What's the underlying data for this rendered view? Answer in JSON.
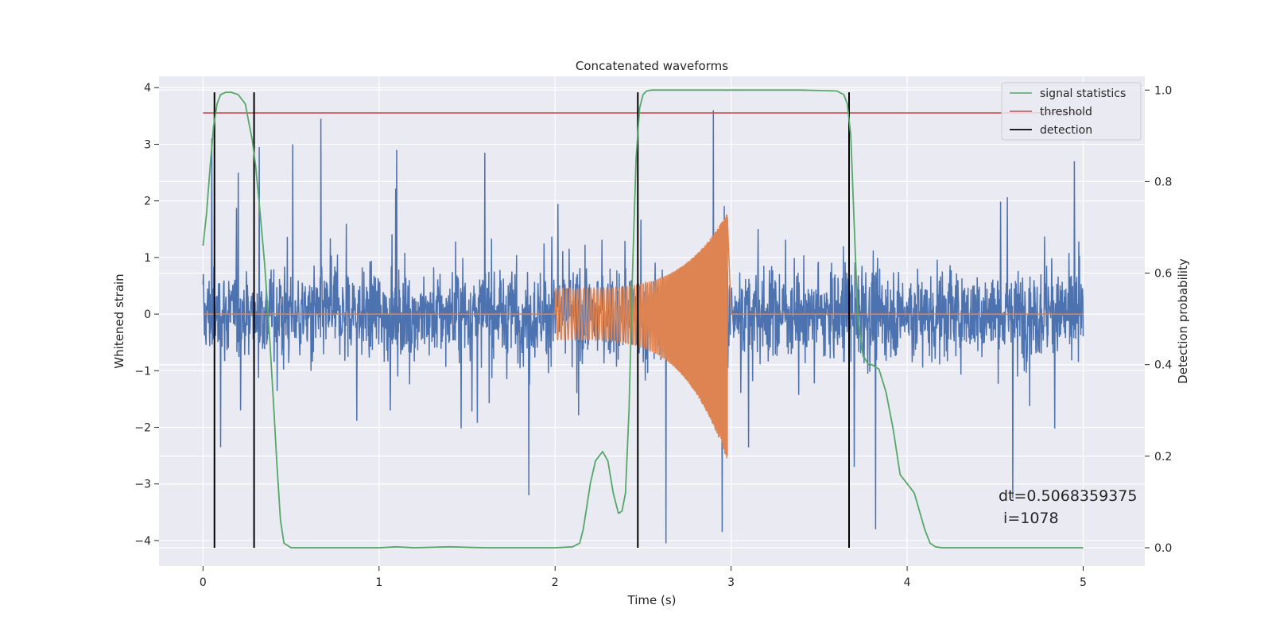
{
  "chart_data": {
    "type": "line",
    "title": "Concatenated waveforms",
    "xlabel": "Time (s)",
    "ylabel": "Whitened strain",
    "y2label": "Detection probability",
    "xlim": [
      -0.25,
      5.35
    ],
    "ylim": [
      -4.45,
      4.2
    ],
    "y2lim": [
      -0.04,
      1.03
    ],
    "xticks": [
      0,
      1,
      2,
      3,
      4,
      5
    ],
    "yticks": [
      -4,
      -3,
      -2,
      -1,
      0,
      1,
      2,
      3,
      4
    ],
    "y2ticks": [
      0.0,
      0.2,
      0.4,
      0.6,
      0.8,
      1.0
    ],
    "grid": true,
    "legend_position": "top-right",
    "colors": {
      "background": "#eaeaf2",
      "strain": "#4c72b0",
      "injection": "#dd8452",
      "statistic": "#55a868",
      "threshold": "#c44e52",
      "detection": "#000000"
    },
    "series": [
      {
        "name": "",
        "axis": "left",
        "description_kind": "noise",
        "x_range": [
          0,
          5
        ],
        "envelope_abs_max": 2.6,
        "spikes": [
          {
            "x": 0.05,
            "y": 3.1
          },
          {
            "x": 0.1,
            "y": -2.35
          },
          {
            "x": 0.2,
            "y": 2.5
          },
          {
            "x": 0.32,
            "y": 2.95
          },
          {
            "x": 0.51,
            "y": 3.0
          },
          {
            "x": 0.67,
            "y": 3.45
          },
          {
            "x": 1.1,
            "y": 2.9
          },
          {
            "x": 1.6,
            "y": 2.85
          },
          {
            "x": 1.85,
            "y": -3.2
          },
          {
            "x": 2.63,
            "y": -4.05
          },
          {
            "x": 2.9,
            "y": 3.6
          },
          {
            "x": 2.95,
            "y": -3.85
          },
          {
            "x": 3.7,
            "y": -2.7
          },
          {
            "x": 3.82,
            "y": -3.8
          },
          {
            "x": 4.6,
            "y": -3.25
          },
          {
            "x": 4.95,
            "y": 2.7
          }
        ]
      },
      {
        "name": "",
        "axis": "left",
        "description_kind": "chirp",
        "t_start": 2.0,
        "t_merge": 2.98,
        "amp_start": 0.45,
        "amp_peak": 1.8,
        "amp_min_peak": -2.6,
        "freq_start": 50,
        "freq_end": 300
      },
      {
        "name": "signal statistics",
        "axis": "right",
        "x": [
          0.0,
          0.02,
          0.04,
          0.06,
          0.08,
          0.1,
          0.13,
          0.16,
          0.2,
          0.24,
          0.26,
          0.28,
          0.3,
          0.32,
          0.35,
          0.38,
          0.4,
          0.42,
          0.44,
          0.46,
          0.5,
          0.7,
          1.0,
          1.1,
          1.2,
          1.4,
          1.6,
          1.8,
          2.0,
          2.1,
          2.14,
          2.16,
          2.18,
          2.2,
          2.23,
          2.27,
          2.3,
          2.33,
          2.36,
          2.38,
          2.4,
          2.42,
          2.44,
          2.46,
          2.48,
          2.5,
          2.52,
          2.55,
          2.6,
          3.0,
          3.4,
          3.6,
          3.64,
          3.66,
          3.68,
          3.7,
          3.72,
          3.75,
          3.78,
          3.8,
          3.84,
          3.88,
          3.92,
          3.96,
          4.0,
          4.04,
          4.07,
          4.1,
          4.13,
          4.16,
          4.2,
          4.3,
          4.6,
          5.0
        ],
        "y": [
          0.66,
          0.73,
          0.83,
          0.92,
          0.97,
          0.99,
          0.995,
          0.995,
          0.99,
          0.97,
          0.93,
          0.89,
          0.83,
          0.75,
          0.62,
          0.45,
          0.32,
          0.18,
          0.06,
          0.01,
          0.0,
          0.0,
          0.0,
          0.002,
          0.0,
          0.002,
          0.0,
          0.0,
          0.0,
          0.002,
          0.01,
          0.04,
          0.09,
          0.14,
          0.19,
          0.21,
          0.19,
          0.12,
          0.075,
          0.08,
          0.12,
          0.3,
          0.6,
          0.85,
          0.96,
          0.99,
          0.998,
          1.0,
          1.0,
          1.0,
          1.0,
          0.998,
          0.99,
          0.97,
          0.9,
          0.7,
          0.5,
          0.42,
          0.4,
          0.4,
          0.39,
          0.34,
          0.26,
          0.16,
          0.14,
          0.12,
          0.08,
          0.04,
          0.01,
          0.002,
          0.0,
          0.0,
          0.0,
          0.0
        ]
      },
      {
        "name": "threshold",
        "axis": "right",
        "x": [
          0,
          5
        ],
        "y": [
          0.95,
          0.95
        ]
      },
      {
        "name": "detection",
        "axis": "right",
        "type": "vlines",
        "x": [
          0.065,
          0.29,
          2.47,
          3.67
        ],
        "y_range": [
          0.0,
          0.995
        ]
      }
    ],
    "legend": [
      "signal statistics",
      "threshold",
      "detection"
    ],
    "annotations": [
      "dt=0.5068359375",
      " i=1078"
    ]
  }
}
